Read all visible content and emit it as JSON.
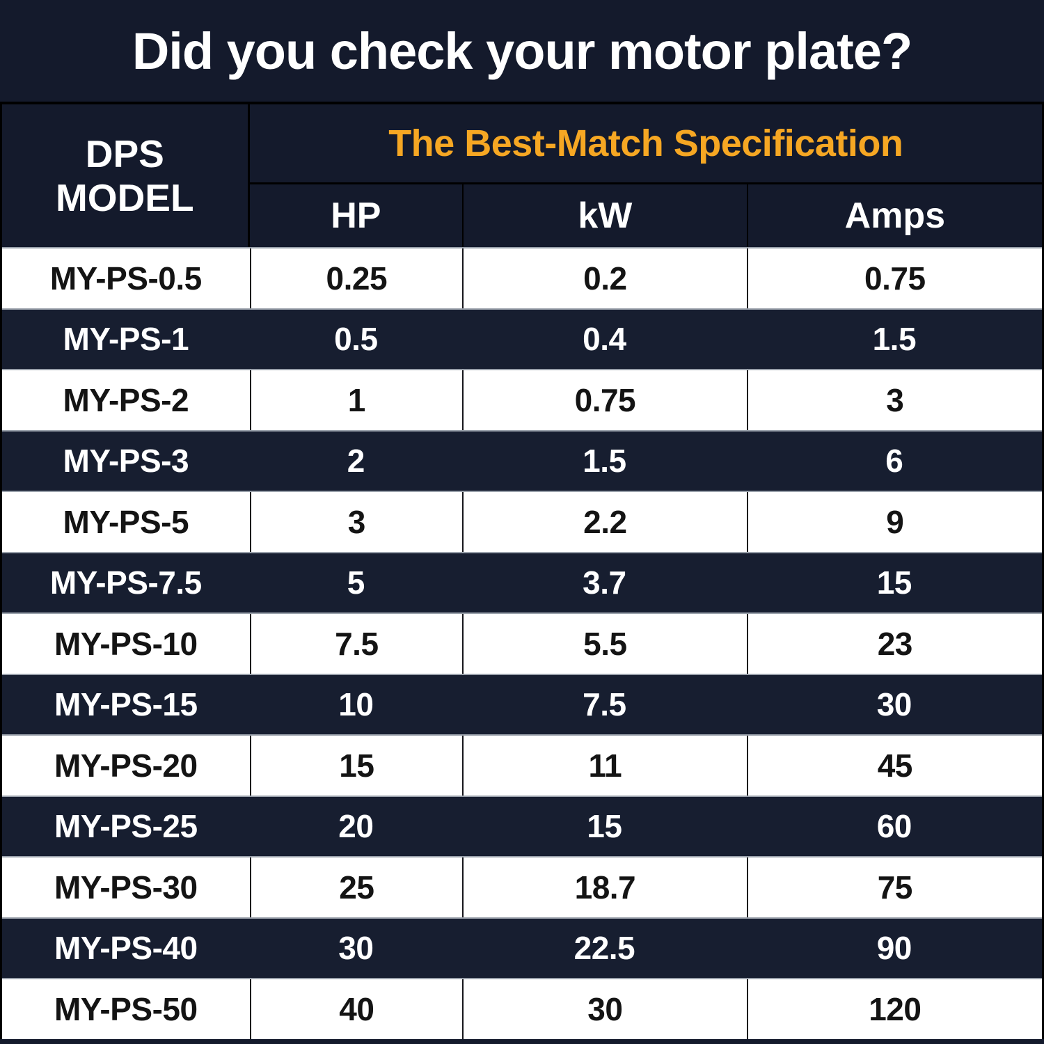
{
  "colors": {
    "background_navy": "#141a2c",
    "dark_row_navy": "#171e30",
    "light_row_white": "#ffffff",
    "accent_orange": "#f6a723",
    "row_divider_gray": "#9aa1ab",
    "grid_line_black": "#000000"
  },
  "title": "Did you check your motor plate?",
  "table": {
    "model_header_lines": [
      "DPS",
      "MODEL"
    ],
    "spec_group_header": "The Best-Match Specification",
    "spec_columns": [
      "HP",
      "kW",
      "Amps"
    ],
    "rows": [
      {
        "model": "MY-PS-0.5",
        "hp": "0.25",
        "kw": "0.2",
        "amps": "0.75"
      },
      {
        "model": "MY-PS-1",
        "hp": "0.5",
        "kw": "0.4",
        "amps": "1.5"
      },
      {
        "model": "MY-PS-2",
        "hp": "1",
        "kw": "0.75",
        "amps": "3"
      },
      {
        "model": "MY-PS-3",
        "hp": "2",
        "kw": "1.5",
        "amps": "6"
      },
      {
        "model": "MY-PS-5",
        "hp": "3",
        "kw": "2.2",
        "amps": "9"
      },
      {
        "model": "MY-PS-7.5",
        "hp": "5",
        "kw": "3.7",
        "amps": "15"
      },
      {
        "model": "MY-PS-10",
        "hp": "7.5",
        "kw": "5.5",
        "amps": "23"
      },
      {
        "model": "MY-PS-15",
        "hp": "10",
        "kw": "7.5",
        "amps": "30"
      },
      {
        "model": "MY-PS-20",
        "hp": "15",
        "kw": "11",
        "amps": "45"
      },
      {
        "model": "MY-PS-25",
        "hp": "20",
        "kw": "15",
        "amps": "60"
      },
      {
        "model": "MY-PS-30",
        "hp": "25",
        "kw": "18.7",
        "amps": "75"
      },
      {
        "model": "MY-PS-40",
        "hp": "30",
        "kw": "22.5",
        "amps": "90"
      },
      {
        "model": "MY-PS-50",
        "hp": "40",
        "kw": "30",
        "amps": "120"
      }
    ]
  },
  "chart_data": {
    "type": "table",
    "title": "Did you check your motor plate?",
    "group_header": "The Best-Match Specification",
    "columns": [
      "DPS MODEL",
      "HP",
      "kW",
      "Amps"
    ],
    "rows": [
      [
        "MY-PS-0.5",
        0.25,
        0.2,
        0.75
      ],
      [
        "MY-PS-1",
        0.5,
        0.4,
        1.5
      ],
      [
        "MY-PS-2",
        1,
        0.75,
        3
      ],
      [
        "MY-PS-3",
        2,
        1.5,
        6
      ],
      [
        "MY-PS-5",
        3,
        2.2,
        9
      ],
      [
        "MY-PS-7.5",
        5,
        3.7,
        15
      ],
      [
        "MY-PS-10",
        7.5,
        5.5,
        23
      ],
      [
        "MY-PS-15",
        10,
        7.5,
        30
      ],
      [
        "MY-PS-20",
        15,
        11,
        45
      ],
      [
        "MY-PS-25",
        20,
        15,
        60
      ],
      [
        "MY-PS-30",
        25,
        18.7,
        75
      ],
      [
        "MY-PS-40",
        30,
        22.5,
        90
      ],
      [
        "MY-PS-50",
        40,
        30,
        120
      ]
    ],
    "layout": {
      "row_striping": [
        "white",
        "dark-navy"
      ],
      "header_text_color": "#ffffff",
      "group_header_color": "#f6a723"
    }
  }
}
